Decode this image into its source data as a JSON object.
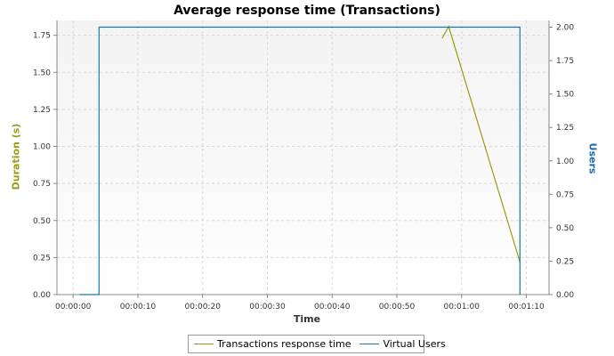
{
  "chart_data": {
    "type": "line",
    "title": "Average response time (Transactions)",
    "xlabel": "Time",
    "ylabel_left": "Duration (s)",
    "ylabel_right": "Users",
    "x_tick_labels": [
      "00:00:00",
      "00:00:10",
      "00:00:20",
      "00:00:30",
      "00:00:40",
      "00:00:50",
      "00:01:00",
      "00:01:10"
    ],
    "x_ticks_seconds": [
      0,
      10,
      20,
      30,
      40,
      50,
      60,
      70
    ],
    "xlim_seconds": [
      -2.5,
      73.5
    ],
    "y_left_ticks": [
      "0.00",
      "0.25",
      "0.50",
      "0.75",
      "1.00",
      "1.25",
      "1.50",
      "1.75"
    ],
    "y_left_lim": [
      0,
      1.85
    ],
    "y_right_ticks": [
      "0.00",
      "0.25",
      "0.50",
      "0.75",
      "1.00",
      "1.25",
      "1.50",
      "1.75",
      "2.00"
    ],
    "y_right_lim": [
      0,
      2.05
    ],
    "grid": true,
    "legend_position": "bottom",
    "series": [
      {
        "name": "Transactions response time",
        "axis": "left",
        "color": "#9c9c14",
        "x": [
          57,
          58,
          69
        ],
        "y": [
          1.73,
          1.81,
          0.22
        ]
      },
      {
        "name": "Virtual Users",
        "axis": "right",
        "color": "#1a7aa6",
        "step": true,
        "x": [
          1,
          4,
          4,
          69,
          69
        ],
        "y": [
          0,
          0,
          2,
          2,
          0
        ]
      }
    ],
    "left_label_color": "#9c9c14",
    "right_label_color": "#1a6ab0"
  }
}
